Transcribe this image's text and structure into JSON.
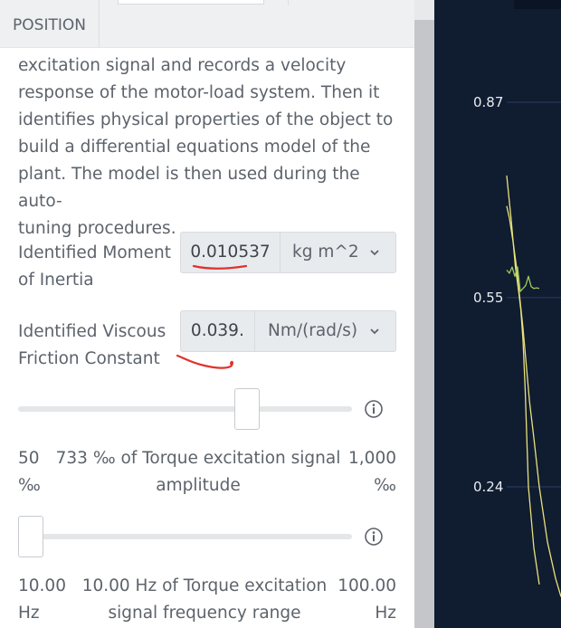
{
  "tabs": {
    "position": "POSITION"
  },
  "description": {
    "lines": [
      "excitation signal and records a velocity",
      "response of the motor-load system. Then it",
      "identifies physical properties of the object to",
      "build a differential equations model of the",
      "plant. The model is then used during the auto-",
      "tuning procedures."
    ]
  },
  "inertia": {
    "label_line1": "Identified Moment",
    "label_line2": "of Inertia",
    "value": "0.010537",
    "unit": "kg m^2"
  },
  "friction": {
    "label_line1": "Identified Viscous",
    "label_line2": "Friction Constant",
    "value": "0.039․",
    "unit": "Nm/(rad/s)"
  },
  "amplitude_slider": {
    "fraction": 0.7,
    "min_line1": "50",
    "min_line2": "‰",
    "caption_line1": "733 ‰ of Torque excitation signal",
    "caption_line2": "amplitude",
    "max_line1": "1,000",
    "max_line2": "‰"
  },
  "frequency_slider": {
    "fraction": 0.0,
    "min_line1": "10.00",
    "min_line2": "Hz",
    "caption_line1": "10.00 Hz of Torque excitation",
    "caption_line2": "signal frequency range",
    "max_line1": "100.00",
    "max_line2": "Hz"
  },
  "chart": {
    "y_ticks": [
      "0.87",
      "0.55",
      "0.24"
    ],
    "colors": {
      "background": "#101c30",
      "yellow": "#e8e27a",
      "green": "#9fcb5c",
      "grid": "#2e3d63"
    }
  },
  "chart_data": {
    "type": "line",
    "title": "",
    "xlabel": "",
    "ylabel": "",
    "y_ticks": [
      0.87,
      0.55,
      0.24
    ],
    "ylim": [
      0.05,
      1.0
    ],
    "xlim": [
      0,
      1
    ],
    "grid": true,
    "series": [
      {
        "x": [
          0.0,
          0.05,
          0.12,
          0.18,
          0.24,
          0.3,
          0.36,
          0.42,
          0.5,
          0.6,
          0.75,
          0.9,
          1.0
        ],
        "values": [
          0.7,
          0.68,
          0.64,
          0.6,
          0.55,
          0.5,
          0.44,
          0.38,
          0.32,
          0.24,
          0.15,
          0.09,
          0.06
        ]
      },
      {
        "x": [
          0.0,
          0.08,
          0.16,
          0.22,
          0.26,
          0.3,
          0.34,
          0.37,
          0.4,
          0.5,
          0.6
        ],
        "values": [
          0.75,
          0.68,
          0.6,
          0.56,
          0.53,
          0.48,
          0.4,
          0.32,
          0.24,
          0.14,
          0.08
        ]
      },
      {
        "x": [
          0.0,
          0.05,
          0.1,
          0.15,
          0.2,
          0.25,
          0.3,
          0.35,
          0.4,
          0.45,
          0.5,
          0.55,
          0.6
        ],
        "values": [
          0.595,
          0.59,
          0.6,
          0.585,
          0.6,
          0.56,
          0.565,
          0.57,
          0.585,
          0.568,
          0.565,
          0.566,
          0.565
        ]
      }
    ]
  }
}
